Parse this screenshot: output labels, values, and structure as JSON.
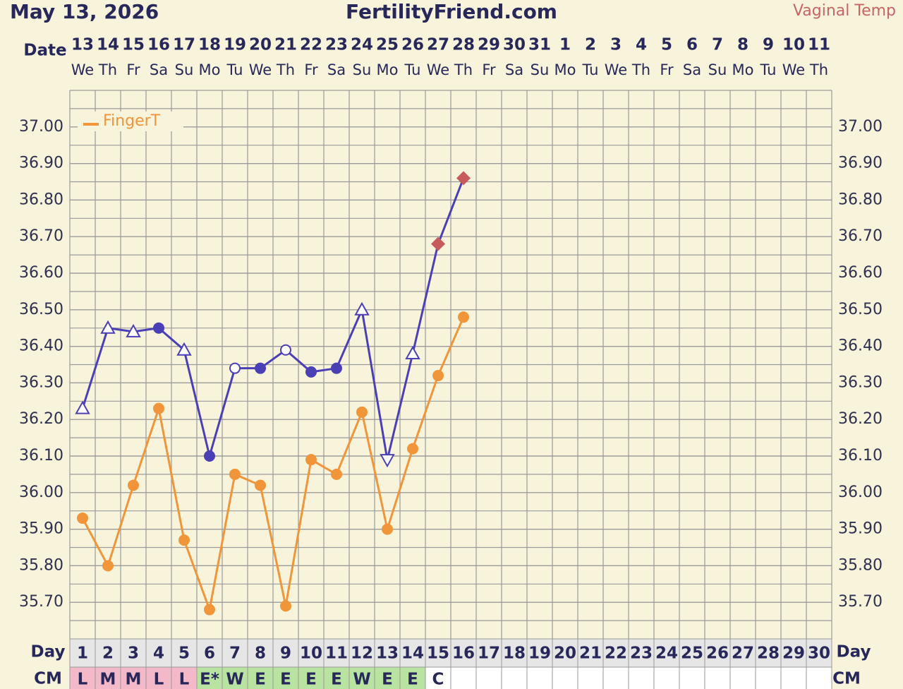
{
  "chart_data": {
    "type": "line",
    "date": "May 13, 2026",
    "title": "FertilityFriend.com",
    "date_label": "Date",
    "day_label": "Day",
    "cm_label": "CM",
    "categories": [
      "13",
      "14",
      "15",
      "16",
      "17",
      "18",
      "19",
      "20",
      "21",
      "22",
      "23",
      "24",
      "25",
      "26",
      "27",
      "28",
      "29",
      "30",
      "31",
      "1",
      "2",
      "3",
      "4",
      "5",
      "6",
      "7",
      "8",
      "9",
      "10",
      "11"
    ],
    "weekdays": [
      "We",
      "Th",
      "Fr",
      "Sa",
      "Su",
      "Mo",
      "Tu",
      "We",
      "Th",
      "Fr",
      "Sa",
      "Su",
      "Mo",
      "Tu",
      "We",
      "Th",
      "Fr",
      "Sa",
      "Su",
      "Mo",
      "Tu",
      "We",
      "Th",
      "Fr",
      "Sa",
      "Su",
      "Mo",
      "Tu",
      "We",
      "Th"
    ],
    "days": [
      1,
      2,
      3,
      4,
      5,
      6,
      7,
      8,
      9,
      10,
      11,
      12,
      13,
      14,
      15,
      16,
      17,
      18,
      19,
      20,
      21,
      22,
      23,
      24,
      25,
      26,
      27,
      28,
      29,
      30
    ],
    "cm": [
      "L",
      "M",
      "M",
      "L",
      "L",
      "E*",
      "W",
      "E",
      "E",
      "E",
      "E",
      "W",
      "E",
      "E",
      "C",
      null,
      null,
      null,
      null,
      null,
      null,
      null,
      null,
      null,
      null,
      null,
      null,
      null,
      null,
      null
    ],
    "cm_colors": [
      "#f3b9c9",
      "#f3b9c9",
      "#f3b9c9",
      "#f3b9c9",
      "#f3b9c9",
      "#b9e3a0",
      "#b9e3a0",
      "#b9e3a0",
      "#b9e3a0",
      "#b9e3a0",
      "#b9e3a0",
      "#b9e3a0",
      "#b9e3a0",
      "#b9e3a0",
      "#ffffff",
      "#ffffff",
      "#ffffff",
      "#ffffff",
      "#ffffff",
      "#ffffff",
      "#ffffff",
      "#ffffff",
      "#ffffff",
      "#ffffff",
      "#ffffff",
      "#ffffff",
      "#ffffff",
      "#ffffff",
      "#ffffff",
      "#ffffff"
    ],
    "series": [
      {
        "name": "Vaginal Temp",
        "color": "#4b3fb5",
        "legend": false,
        "values": [
          36.23,
          36.45,
          36.44,
          36.45,
          36.39,
          36.1,
          36.34,
          36.34,
          36.39,
          36.33,
          36.34,
          36.5,
          36.09,
          36.38,
          36.68,
          36.86,
          null,
          null,
          null,
          null,
          null,
          null,
          null,
          null,
          null,
          null,
          null,
          null,
          null,
          null
        ],
        "markers": [
          "triangle",
          "triangle",
          "triangle",
          "dot",
          "triangle",
          "dot",
          "circle",
          "dot",
          "circle",
          "dot",
          "dot",
          "triangle",
          "triangle-down",
          "triangle",
          "diamond",
          "diamond",
          null,
          null,
          null,
          null,
          null,
          null,
          null,
          null,
          null,
          null,
          null,
          null,
          null,
          null
        ],
        "marker_color": "#c75b5b"
      },
      {
        "name": "FingerT",
        "color": "#f0953a",
        "legend": true,
        "values": [
          35.93,
          35.8,
          36.02,
          36.23,
          35.87,
          35.68,
          36.05,
          36.02,
          35.69,
          36.09,
          36.05,
          36.22,
          35.9,
          36.12,
          36.32,
          36.48,
          null,
          null,
          null,
          null,
          null,
          null,
          null,
          null,
          null,
          null,
          null,
          null,
          null,
          null
        ],
        "markers": [
          "dot",
          "dot",
          "dot",
          "dot",
          "dot",
          "dot",
          "dot",
          "dot",
          "dot",
          "dot",
          "dot",
          "dot",
          "dot",
          "dot",
          "dot",
          "dot",
          null,
          null,
          null,
          null,
          null,
          null,
          null,
          null,
          null,
          null,
          null,
          null,
          null,
          null
        ]
      }
    ],
    "ylim": [
      35.6,
      37.1
    ],
    "yticks": [
      {
        "value": 35.7,
        "label": "35.70"
      },
      {
        "value": 35.8,
        "label": "35.80"
      },
      {
        "value": 35.9,
        "label": "35.90"
      },
      {
        "value": 36.0,
        "label": "36.00"
      },
      {
        "value": 36.1,
        "label": "36.10"
      },
      {
        "value": 36.2,
        "label": "36.20"
      },
      {
        "value": 36.3,
        "label": "36.30"
      },
      {
        "value": 36.4,
        "label": "36.40"
      },
      {
        "value": 36.5,
        "label": "36.50"
      },
      {
        "value": 36.6,
        "label": "36.60"
      },
      {
        "value": 36.7,
        "label": "36.70"
      },
      {
        "value": 36.8,
        "label": "36.80"
      },
      {
        "value": 36.9,
        "label": "36.90"
      },
      {
        "value": 37.0,
        "label": "37.00"
      }
    ],
    "grid": true,
    "legend_position": "upper left"
  }
}
